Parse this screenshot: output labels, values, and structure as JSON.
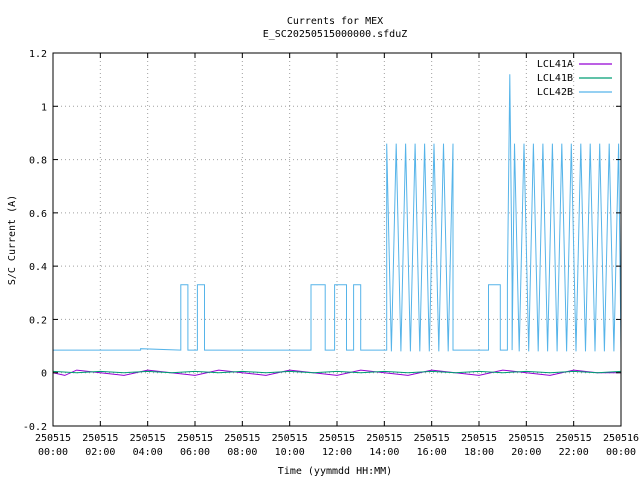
{
  "chart_data": {
    "type": "line",
    "title": "Currents for MEX",
    "subtitle": "E_SC20250515000000.sfduZ",
    "xlabel": "Time (yymmdd HH:MM)",
    "ylabel": "S/C Current (A)",
    "xlim": [
      0,
      24
    ],
    "ylim": [
      -0.2,
      1.2
    ],
    "grid": true,
    "legend_position": "top-right",
    "x_ticks": [
      {
        "value": 0,
        "date": "250515",
        "time": "00:00"
      },
      {
        "value": 2,
        "date": "250515",
        "time": "02:00"
      },
      {
        "value": 4,
        "date": "250515",
        "time": "04:00"
      },
      {
        "value": 6,
        "date": "250515",
        "time": "06:00"
      },
      {
        "value": 8,
        "date": "250515",
        "time": "08:00"
      },
      {
        "value": 10,
        "date": "250515",
        "time": "10:00"
      },
      {
        "value": 12,
        "date": "250515",
        "time": "12:00"
      },
      {
        "value": 14,
        "date": "250515",
        "time": "14:00"
      },
      {
        "value": 16,
        "date": "250515",
        "time": "16:00"
      },
      {
        "value": 18,
        "date": "250515",
        "time": "18:00"
      },
      {
        "value": 20,
        "date": "250515",
        "time": "20:00"
      },
      {
        "value": 22,
        "date": "250515",
        "time": "22:00"
      },
      {
        "value": 24,
        "date": "250516",
        "time": "00:00"
      }
    ],
    "y_ticks": [
      {
        "value": -0.2,
        "label": "-0.2"
      },
      {
        "value": 0,
        "label": "0"
      },
      {
        "value": 0.2,
        "label": "0.2"
      },
      {
        "value": 0.4,
        "label": "0.4"
      },
      {
        "value": 0.6,
        "label": "0.6"
      },
      {
        "value": 0.8,
        "label": "0.8"
      },
      {
        "value": 1,
        "label": "1"
      },
      {
        "value": 1.2,
        "label": "1.2"
      }
    ],
    "series": [
      {
        "name": "LCL41A",
        "color": "#9400d3",
        "points": [
          [
            0,
            0.0
          ],
          [
            0.5,
            -0.01
          ],
          [
            1,
            0.01
          ],
          [
            2,
            0.0
          ],
          [
            3,
            -0.01
          ],
          [
            4,
            0.01
          ],
          [
            5,
            0.0
          ],
          [
            6,
            -0.01
          ],
          [
            7,
            0.01
          ],
          [
            8,
            0.0
          ],
          [
            9,
            -0.01
          ],
          [
            10,
            0.01
          ],
          [
            11,
            0.0
          ],
          [
            12,
            -0.01
          ],
          [
            13,
            0.01
          ],
          [
            14,
            0.0
          ],
          [
            15,
            -0.01
          ],
          [
            16,
            0.01
          ],
          [
            17,
            0.0
          ],
          [
            18,
            -0.01
          ],
          [
            19,
            0.01
          ],
          [
            20,
            0.0
          ],
          [
            21,
            -0.01
          ],
          [
            22,
            0.01
          ],
          [
            23,
            0.0
          ],
          [
            24,
            0.0
          ]
        ]
      },
      {
        "name": "LCL41B",
        "color": "#009e73",
        "points": [
          [
            0,
            0.005
          ],
          [
            1,
            0.0
          ],
          [
            2,
            0.005
          ],
          [
            3,
            0.0
          ],
          [
            4,
            0.005
          ],
          [
            5,
            0.0
          ],
          [
            6,
            0.005
          ],
          [
            7,
            0.0
          ],
          [
            8,
            0.005
          ],
          [
            9,
            0.0
          ],
          [
            10,
            0.005
          ],
          [
            11,
            0.0
          ],
          [
            12,
            0.005
          ],
          [
            13,
            0.0
          ],
          [
            14,
            0.005
          ],
          [
            15,
            0.0
          ],
          [
            16,
            0.005
          ],
          [
            17,
            0.0
          ],
          [
            18,
            0.005
          ],
          [
            19,
            0.0
          ],
          [
            20,
            0.005
          ],
          [
            21,
            0.0
          ],
          [
            22,
            0.005
          ],
          [
            23,
            0.0
          ],
          [
            24,
            0.005
          ]
        ]
      },
      {
        "name": "LCL42B",
        "color": "#56b4e9",
        "points": [
          [
            0,
            0.085
          ],
          [
            3.7,
            0.085
          ],
          [
            3.7,
            0.09
          ],
          [
            5.4,
            0.085
          ],
          [
            5.4,
            0.33
          ],
          [
            5.7,
            0.33
          ],
          [
            5.7,
            0.085
          ],
          [
            6.1,
            0.085
          ],
          [
            6.1,
            0.33
          ],
          [
            6.4,
            0.33
          ],
          [
            6.4,
            0.085
          ],
          [
            10.9,
            0.085
          ],
          [
            10.9,
            0.33
          ],
          [
            11.5,
            0.33
          ],
          [
            11.5,
            0.085
          ],
          [
            11.9,
            0.085
          ],
          [
            11.9,
            0.33
          ],
          [
            12.4,
            0.33
          ],
          [
            12.4,
            0.085
          ],
          [
            12.7,
            0.085
          ],
          [
            12.7,
            0.33
          ],
          [
            13.0,
            0.33
          ],
          [
            13.0,
            0.085
          ],
          [
            14.1,
            0.085
          ],
          [
            14.1,
            0.86
          ],
          [
            14.3,
            0.08
          ],
          [
            14.5,
            0.86
          ],
          [
            14.7,
            0.08
          ],
          [
            14.9,
            0.86
          ],
          [
            15.1,
            0.08
          ],
          [
            15.3,
            0.86
          ],
          [
            15.5,
            0.08
          ],
          [
            15.7,
            0.86
          ],
          [
            15.9,
            0.08
          ],
          [
            16.1,
            0.86
          ],
          [
            16.3,
            0.08
          ],
          [
            16.5,
            0.86
          ],
          [
            16.7,
            0.08
          ],
          [
            16.9,
            0.86
          ],
          [
            16.9,
            0.085
          ],
          [
            18.4,
            0.085
          ],
          [
            18.4,
            0.33
          ],
          [
            18.9,
            0.33
          ],
          [
            18.9,
            0.085
          ],
          [
            19.2,
            0.085
          ],
          [
            19.2,
            0.33
          ],
          [
            19.3,
            1.12
          ],
          [
            19.4,
            0.33
          ],
          [
            19.4,
            0.085
          ],
          [
            19.5,
            0.86
          ],
          [
            19.7,
            0.08
          ],
          [
            19.9,
            0.86
          ],
          [
            20.1,
            0.08
          ],
          [
            20.3,
            0.86
          ],
          [
            20.5,
            0.08
          ],
          [
            20.7,
            0.86
          ],
          [
            20.9,
            0.08
          ],
          [
            21.1,
            0.86
          ],
          [
            21.3,
            0.08
          ],
          [
            21.5,
            0.86
          ],
          [
            21.7,
            0.08
          ],
          [
            21.9,
            0.86
          ],
          [
            22.1,
            0.08
          ],
          [
            22.3,
            0.86
          ],
          [
            22.5,
            0.08
          ],
          [
            22.7,
            0.86
          ],
          [
            22.9,
            0.08
          ],
          [
            23.1,
            0.86
          ],
          [
            23.3,
            0.08
          ],
          [
            23.5,
            0.86
          ],
          [
            23.7,
            0.08
          ],
          [
            23.9,
            0.86
          ],
          [
            24,
            0.085
          ]
        ]
      }
    ]
  }
}
